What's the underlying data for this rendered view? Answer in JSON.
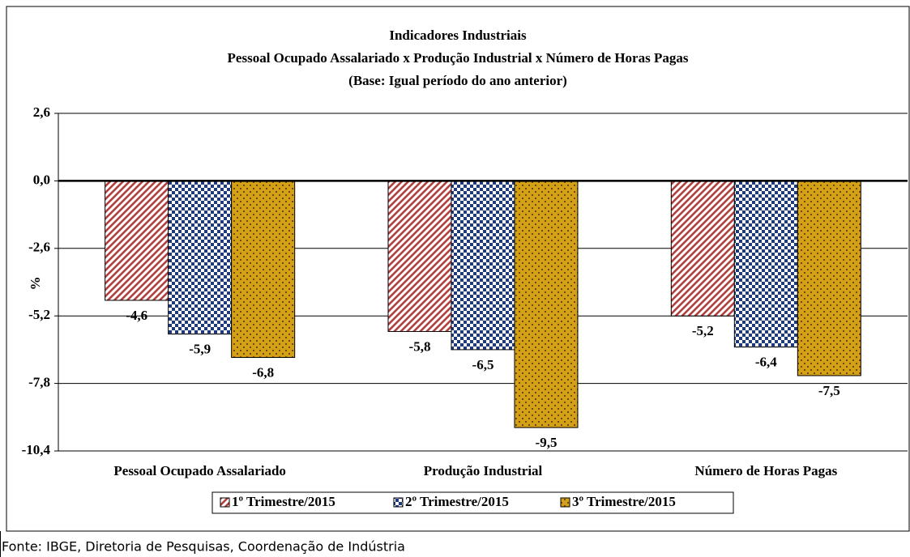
{
  "chart_data": {
    "type": "bar",
    "title": "Indicadores Industriais",
    "subtitle": "Pessoal Ocupado  Assalariado x Produção Industrial x Número de Horas Pagas",
    "subtitle2": "(Base: Igual período do ano anterior)",
    "y_label": "%",
    "categories": [
      "Pessoal Ocupado Assalariado",
      "Produção Industrial",
      "Número de Horas Pagas"
    ],
    "series": [
      {
        "name": "1º Trimestre/2015",
        "color": "#b0413e",
        "values": [
          -4.6,
          -5.8,
          -5.2
        ],
        "value_labels": [
          "-4,6",
          "-5,8",
          "-5,2"
        ]
      },
      {
        "name": "2º Trimestre/2015",
        "color": "#1f3a7a",
        "values": [
          -5.9,
          -6.5,
          -6.4
        ],
        "value_labels": [
          "-5,9",
          "-6,5",
          "-6,4"
        ]
      },
      {
        "name": "3º Trimestre/2015",
        "color": "#d4a017",
        "values": [
          -6.8,
          -9.5,
          -7.5
        ],
        "value_labels": [
          "-6,8",
          "-9,5",
          "-7,5"
        ]
      }
    ],
    "ylim": [
      -10.4,
      2.6
    ],
    "yticks": [
      {
        "value": 2.6,
        "label": "2,6"
      },
      {
        "value": 0,
        "label": "0,0"
      },
      {
        "value": -2.6,
        "label": "-2,6"
      },
      {
        "value": -5.2,
        "label": "-5,2"
      },
      {
        "value": -7.8,
        "label": "-7,8"
      },
      {
        "value": -10.4,
        "label": "-10,4"
      }
    ],
    "grid": true,
    "legend": "bottom"
  },
  "source": "Fonte: IBGE, Diretoria de Pesquisas, Coordenação de Indústria"
}
